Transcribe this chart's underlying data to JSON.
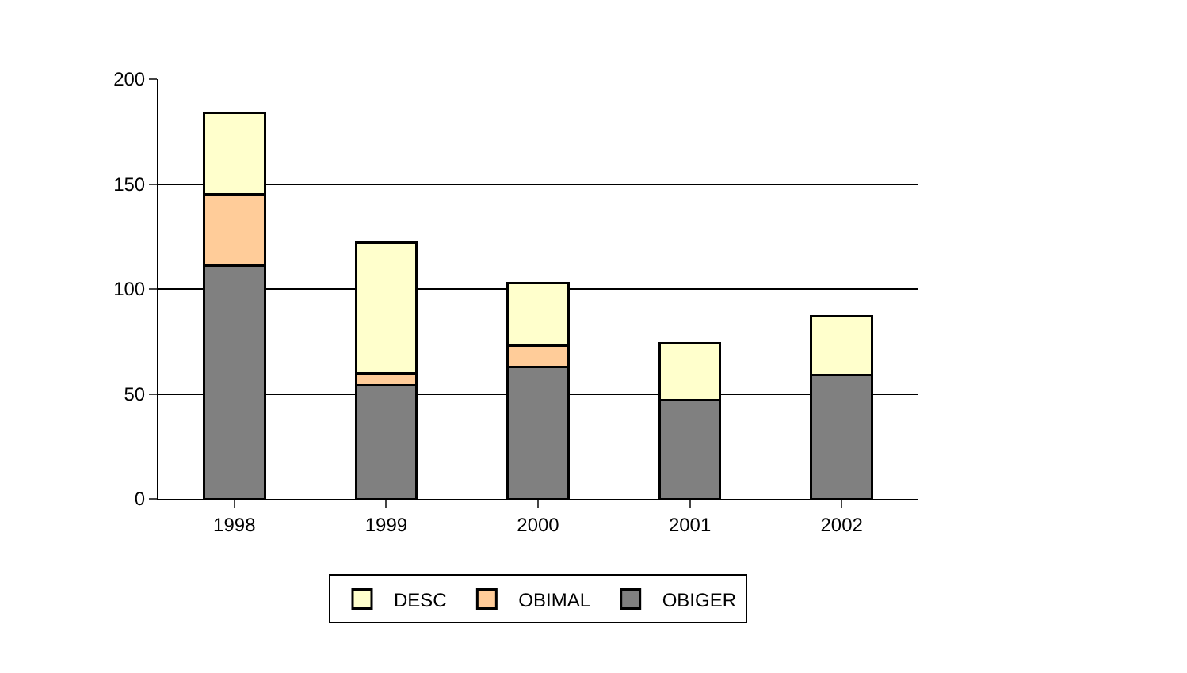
{
  "chart_data": {
    "type": "bar",
    "stacked": true,
    "categories": [
      "1998",
      "1999",
      "2000",
      "2001",
      "2002"
    ],
    "series": [
      {
        "name": "OBIGER",
        "color": "#808080",
        "values": [
          111,
          54,
          63,
          47,
          59
        ]
      },
      {
        "name": "OBIMAL",
        "color": "#ffcc99",
        "values": [
          34,
          6,
          10,
          0,
          0
        ]
      },
      {
        "name": "DESC",
        "color": "#ffffcc",
        "values": [
          39,
          62,
          30,
          27,
          28
        ]
      }
    ],
    "ylim": [
      0,
      200
    ],
    "yticks": [
      0,
      50,
      100,
      150,
      200
    ],
    "grid": "y",
    "legend": "bottom"
  }
}
